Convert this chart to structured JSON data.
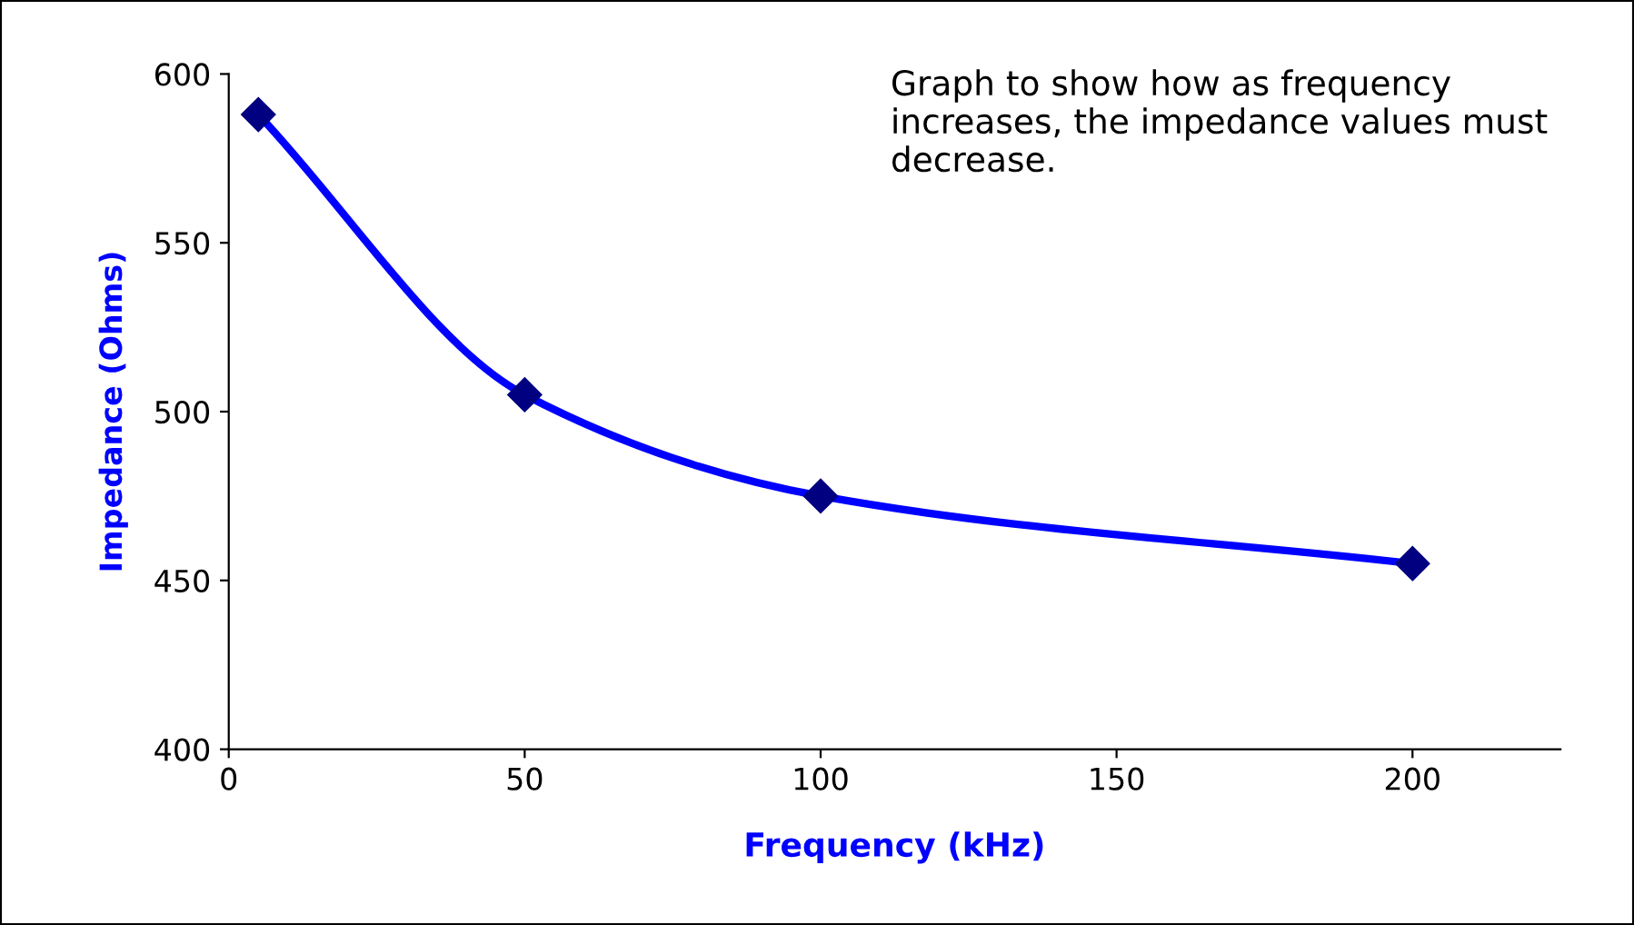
{
  "chart_data": {
    "type": "line",
    "xlabel": "Frequency (kHz)",
    "ylabel": "Impedance (Ohms)",
    "x": [
      5,
      50,
      100,
      200
    ],
    "series": [
      {
        "color": "#0000ff",
        "values": [
          588,
          505,
          475,
          455
        ]
      }
    ],
    "xlim": [
      0,
      225
    ],
    "xticks": [
      0,
      50,
      100,
      150,
      200
    ],
    "ylim": [
      400,
      600
    ],
    "yticks": [
      400,
      450,
      500,
      550,
      600
    ],
    "marker": "diamond",
    "grid": false,
    "annotations": [
      "Graph to show how as frequency\nincreases, the impedance values must\ndecrease."
    ]
  }
}
